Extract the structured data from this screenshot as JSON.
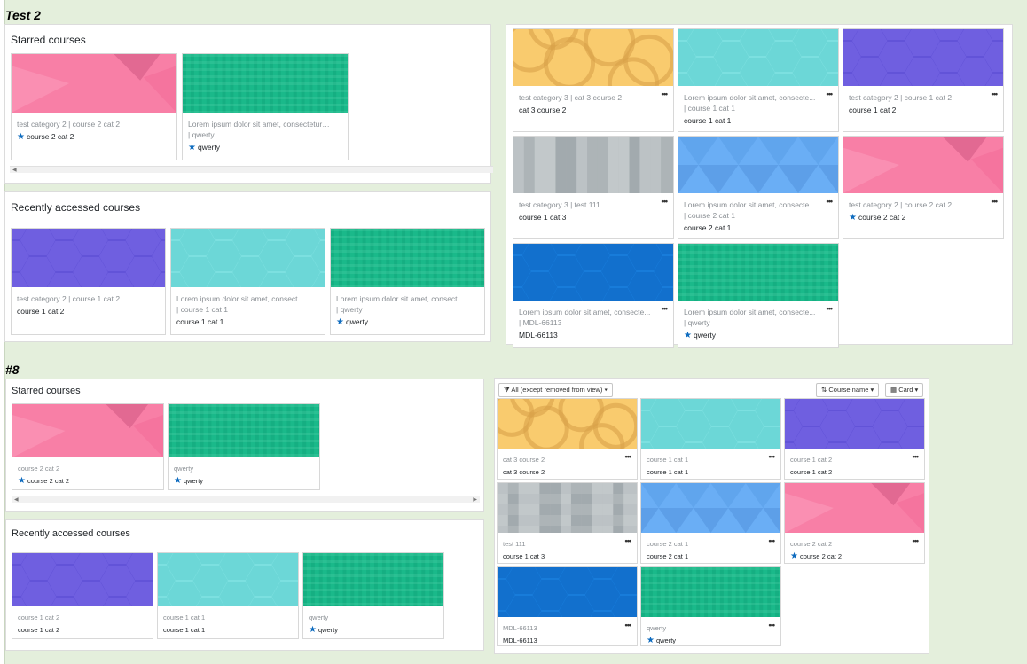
{
  "test2": {
    "label": "Test 2",
    "starred": {
      "title": "Starred courses",
      "cards": [
        {
          "cat": "test category 2 | course 2 cat 2",
          "name": "course 2 cat 2",
          "starred": true,
          "pattern": "pink"
        },
        {
          "cat": "Lorem ipsum dolor sit amet, consectetur ad...",
          "cat2": "| qwerty",
          "name": "qwerty",
          "starred": true,
          "pattern": "green"
        }
      ]
    },
    "recent": {
      "title": "Recently accessed courses",
      "cards": [
        {
          "cat": "test category 2 | course 1 cat 2",
          "name": "course 1 cat 2",
          "starred": false,
          "pattern": "purple"
        },
        {
          "cat": "Lorem ipsum dolor sit amet, consectetu...",
          "cat2": "| course 1 cat 1",
          "name": "course 1 cat 1",
          "starred": false,
          "pattern": "cyan"
        },
        {
          "cat": "Lorem ipsum dolor sit amet, consectetur...",
          "cat2": "| qwerty",
          "name": "qwerty",
          "starred": true,
          "pattern": "green"
        }
      ]
    },
    "overview": {
      "cards": [
        {
          "cat": "test category 3 | cat 3 course 2",
          "name": "cat 3 course 2",
          "starred": false,
          "pattern": "orange"
        },
        {
          "cat": "Lorem ipsum dolor sit amet, consecte...",
          "cat2": "| course 1 cat 1",
          "name": "course 1 cat 1",
          "starred": false,
          "pattern": "cyan"
        },
        {
          "cat": "test category 2 | course 1 cat 2",
          "name": "course 1 cat 2",
          "starred": false,
          "pattern": "purple"
        },
        {
          "cat": "test category 3 | test 111",
          "name": "course 1 cat 3",
          "starred": false,
          "pattern": "gray"
        },
        {
          "cat": "Lorem ipsum dolor sit amet, consecte...",
          "cat2": "| course 2 cat 1",
          "name": "course 2 cat 1",
          "starred": false,
          "pattern": "blue"
        },
        {
          "cat": "test category 2 | course 2 cat 2",
          "name": "course 2 cat 2",
          "starred": true,
          "pattern": "pink"
        },
        {
          "cat": "Lorem ipsum dolor sit amet, consecte...",
          "cat2": "| MDL-66113",
          "name": "MDL-66113",
          "starred": false,
          "pattern": "darkblue"
        },
        {
          "cat": "Lorem ipsum dolor sit amet, consecte...",
          "cat2": "| qwerty",
          "name": "qwerty",
          "starred": true,
          "pattern": "green"
        }
      ]
    }
  },
  "issue8": {
    "label": "#8",
    "starred": {
      "title": "Starred courses",
      "cards": [
        {
          "cat": "course 2 cat 2",
          "name": "course 2 cat 2",
          "starred": true,
          "pattern": "pink"
        },
        {
          "cat": "qwerty",
          "name": "qwerty",
          "starred": true,
          "pattern": "green"
        }
      ]
    },
    "recent": {
      "title": "Recently accessed courses",
      "cards": [
        {
          "cat": "course 1 cat 2",
          "name": "course 1 cat 2",
          "starred": false,
          "pattern": "purple"
        },
        {
          "cat": "course 1 cat 1",
          "name": "course 1 cat 1",
          "starred": false,
          "pattern": "cyan"
        },
        {
          "cat": "qwerty",
          "name": "qwerty",
          "starred": true,
          "pattern": "green"
        }
      ]
    },
    "overview": {
      "filter_label": "All (except removed from view)",
      "sort_label": "Course name",
      "view_label": "Card",
      "cards": [
        {
          "cat": "cat 3 course 2",
          "name": "cat 3 course 2",
          "starred": false,
          "pattern": "orange"
        },
        {
          "cat": "course 1 cat 1",
          "name": "course 1 cat 1",
          "starred": false,
          "pattern": "cyan"
        },
        {
          "cat": "course 1 cat 2",
          "name": "course 1 cat 2",
          "starred": false,
          "pattern": "purple"
        },
        {
          "cat": "test 111",
          "name": "course 1 cat 3",
          "starred": false,
          "pattern": "gray"
        },
        {
          "cat": "course 2 cat 1",
          "name": "course 2 cat 1",
          "starred": false,
          "pattern": "blue"
        },
        {
          "cat": "course 2 cat 2",
          "name": "course 2 cat 2",
          "starred": true,
          "pattern": "pink"
        },
        {
          "cat": "MDL-66113",
          "name": "MDL-66113",
          "starred": false,
          "pattern": "darkblue"
        },
        {
          "cat": "qwerty",
          "name": "qwerty",
          "starred": true,
          "pattern": "green"
        }
      ]
    }
  },
  "icons": {
    "star": "star-icon",
    "menu": "ellipsis-icon",
    "filter": "filter-icon",
    "sort": "sort-icon",
    "grid": "grid-icon",
    "caret": "caret-down-icon"
  },
  "colors": {
    "background": "#e4efdc",
    "accent": "#0f6cbf",
    "pink": "#f87fa6",
    "green": "#1ab98a",
    "purple": "#5f4fd6",
    "cyan": "#81e3e3",
    "orange": "#f9cb6e",
    "gray": "#b4bbbe",
    "blue": "#6aaef5",
    "darkblue": "#1a80e0"
  }
}
